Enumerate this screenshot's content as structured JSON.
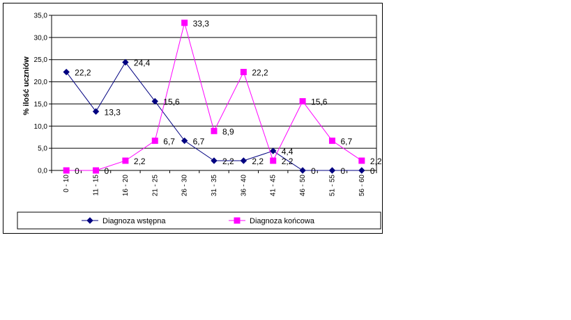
{
  "chart_data": {
    "type": "line",
    "ylabel": "% ilość uczniów",
    "ylim": [
      0,
      35
    ],
    "ytick_step": 5,
    "ytick_labels": [
      "0,0",
      "5,0",
      "10,0",
      "15,0",
      "20,0",
      "25,0",
      "30,0",
      "35,0"
    ],
    "grid": true,
    "legend_position": "bottom",
    "categories": [
      "0 - 10",
      "11 - 15",
      "16 - 20",
      "21 - 25",
      "26 - 30",
      "31 - 35",
      "36 - 40",
      "41 - 45",
      "46 - 50",
      "51 - 55",
      "56 - 60"
    ],
    "series": [
      {
        "name": "Diagnoza wstępna",
        "color": "#000080",
        "marker": "diamond",
        "values": [
          22.2,
          13.3,
          24.4,
          15.6,
          6.7,
          2.2,
          2.2,
          4.4,
          0,
          0,
          0
        ],
        "labels": [
          "22,2",
          "13,3",
          "24,4",
          "15,6",
          "6,7",
          "2,2",
          "2,2",
          "4,4",
          "0",
          "0",
          "0"
        ]
      },
      {
        "name": "Diagnoza końcowa",
        "color": "#ff00ff",
        "marker": "square",
        "values": [
          0,
          0,
          2.2,
          6.7,
          33.3,
          8.9,
          22.2,
          2.2,
          15.6,
          6.7,
          2.2
        ],
        "labels": [
          "0",
          "0",
          "2,2",
          "6,7",
          "33,3",
          "8,9",
          "22,2",
          "2,2",
          "15,6",
          "6,7",
          "2,2"
        ]
      }
    ]
  }
}
